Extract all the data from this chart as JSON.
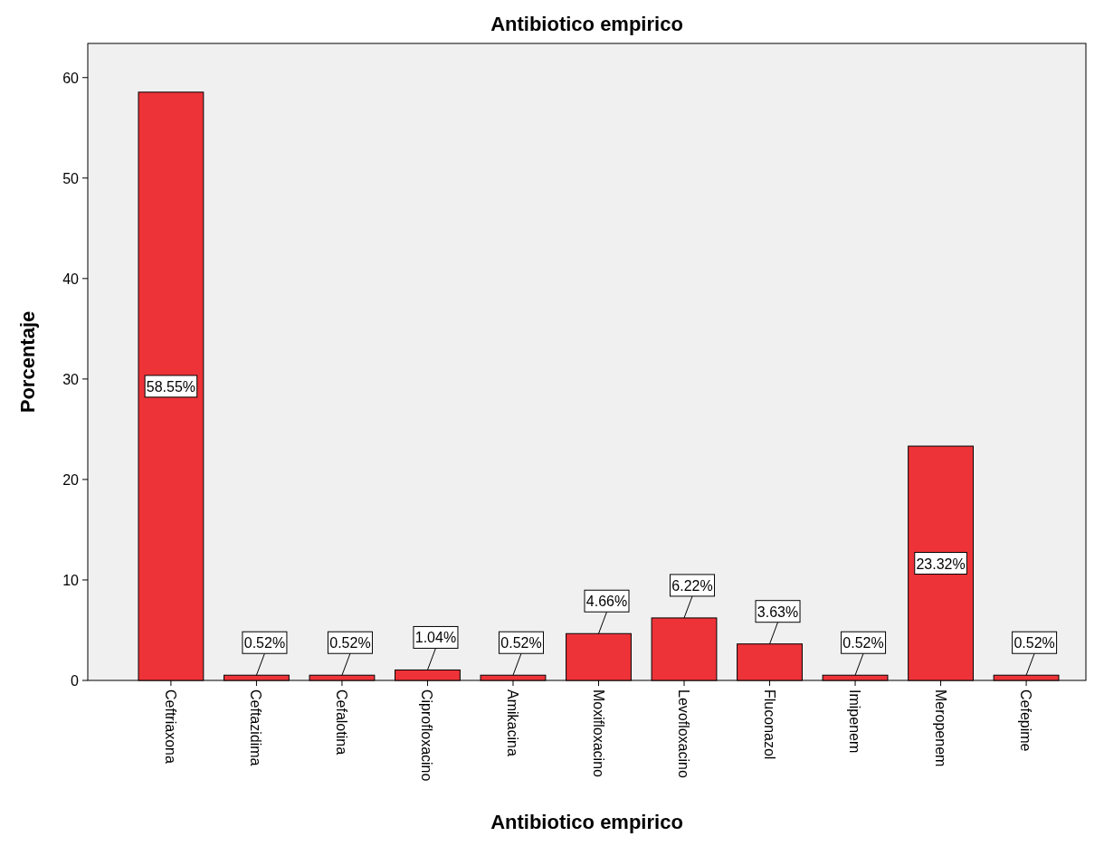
{
  "chart_data": {
    "type": "bar",
    "title": "Antibiotico empirico",
    "xlabel": "Antibiotico empirico",
    "ylabel": "Porcentaje",
    "categories": [
      "Ceftriaxona",
      "Ceftazidima",
      "Cefalotina",
      "Ciprofloxacino",
      "Amikacina",
      "Moxifloxacino",
      "Levofloxacino",
      "Fluconazol",
      "Imipenem",
      "Meropenem",
      "Cefepime"
    ],
    "values": [
      58.55,
      0.52,
      0.52,
      1.04,
      0.52,
      4.66,
      6.22,
      3.63,
      0.52,
      23.32,
      0.52
    ],
    "value_labels": [
      "58.55%",
      "0.52%",
      "0.52%",
      "1.04%",
      "0.52%",
      "4.66%",
      "6.22%",
      "3.63%",
      "0.52%",
      "23.32%",
      "0.52%"
    ],
    "color": "#ee3338",
    "ylim": [
      0,
      63.4
    ],
    "yticks": [
      0,
      10,
      20,
      30,
      40,
      50,
      60
    ],
    "grid": false
  }
}
